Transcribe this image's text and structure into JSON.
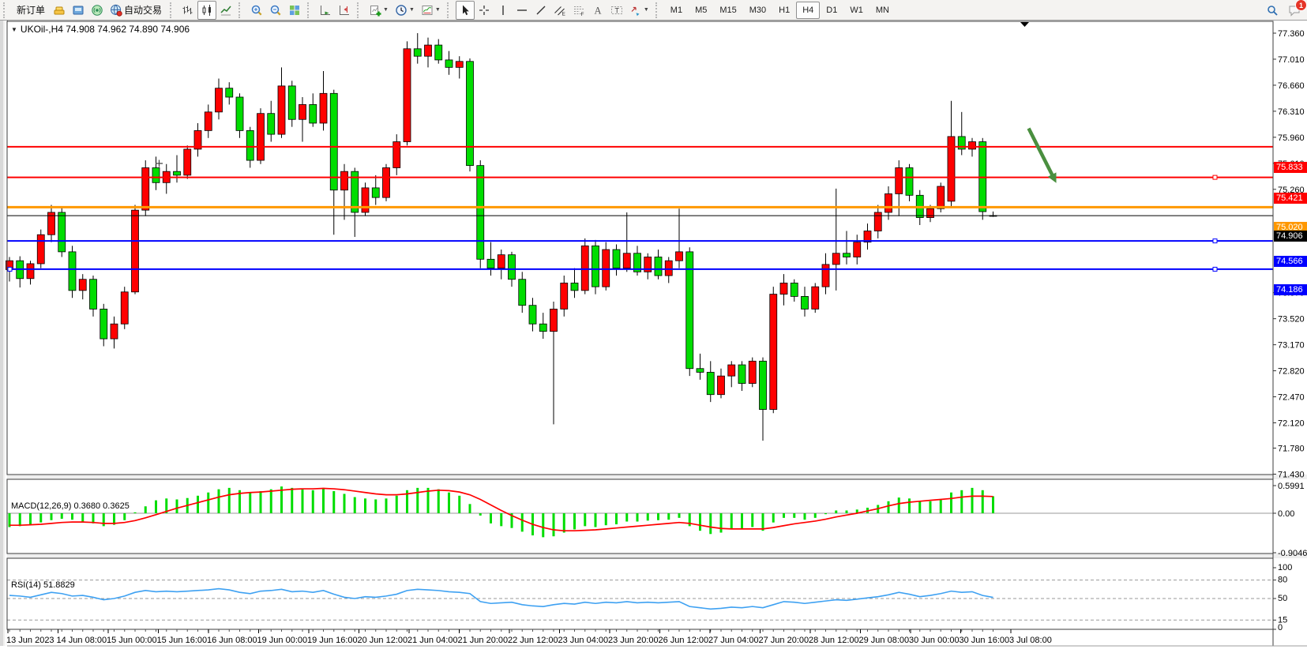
{
  "toolbar": {
    "groups": [
      {
        "name": "trade",
        "buttons": [
          {
            "name": "new-order-button",
            "icon": "new-order",
            "label": "新订单"
          },
          {
            "name": "market-watch-button",
            "icon": "gold"
          },
          {
            "name": "data-window-button",
            "icon": "terminal"
          },
          {
            "name": "navigator-button",
            "icon": "signal"
          },
          {
            "name": "autotrading-button",
            "icon": "globe",
            "label": "自动交易"
          }
        ]
      },
      {
        "name": "chart-type",
        "buttons": [
          {
            "name": "bar-chart-button",
            "icon": "bars"
          },
          {
            "name": "candlestick-button",
            "icon": "candles",
            "active": true
          },
          {
            "name": "line-chart-button",
            "icon": "line"
          }
        ]
      },
      {
        "name": "zoom",
        "buttons": [
          {
            "name": "zoom-in-button",
            "icon": "zoom-in"
          },
          {
            "name": "zoom-out-button",
            "icon": "zoom-out"
          },
          {
            "name": "tile-windows-button",
            "icon": "tile"
          }
        ]
      },
      {
        "name": "scroll",
        "buttons": [
          {
            "name": "auto-scroll-button",
            "icon": "autoscroll"
          },
          {
            "name": "chart-shift-button",
            "icon": "shift"
          }
        ]
      },
      {
        "name": "objects",
        "buttons": [
          {
            "name": "new-chart-button",
            "icon": "new-chart",
            "dropdown": true
          },
          {
            "name": "period-button",
            "icon": "clock",
            "dropdown": true
          },
          {
            "name": "template-button",
            "icon": "template",
            "dropdown": true
          }
        ]
      },
      {
        "name": "drawing",
        "buttons": [
          {
            "name": "cursor-button",
            "icon": "cursor",
            "active": true
          },
          {
            "name": "crosshair-button",
            "icon": "crosshair"
          },
          {
            "name": "vertical-line-button",
            "icon": "vline"
          },
          {
            "name": "horizontal-line-button",
            "icon": "hline"
          },
          {
            "name": "trendline-button",
            "icon": "trend"
          },
          {
            "name": "channel-button",
            "icon": "channel"
          },
          {
            "name": "fibonacci-button",
            "icon": "fibo"
          },
          {
            "name": "text-button",
            "icon": "text"
          },
          {
            "name": "label-button",
            "icon": "label"
          },
          {
            "name": "arrows-button",
            "icon": "arrows",
            "dropdown": true
          }
        ]
      }
    ],
    "timeframes": [
      "M1",
      "M5",
      "M15",
      "M30",
      "H1",
      "H4",
      "D1",
      "W1",
      "MN"
    ],
    "active_timeframe": "H4",
    "notification_badge": "1"
  },
  "chart_header": {
    "title": "UKOil-,H4  74.908 74.962 74.890 74.906"
  },
  "indicators": {
    "macd_label": "MACD(12,26,9) 0.3680 0.3625",
    "rsi_label": "RSI(14) 51.8829"
  },
  "colors": {
    "candle_up": "#ff0000",
    "candle_down": "#00dd00",
    "wick": "#000000",
    "macd_histogram": "#00dd00",
    "macd_signal": "#ff0000",
    "rsi_line": "#3ea1f2",
    "level_red": "#ff0000",
    "level_orange": "#ff9800",
    "level_blue": "#0000ff",
    "current_price": "#000000",
    "annotation_arrow": "#4a8f3f"
  },
  "chart_data": [
    {
      "type": "candlestick",
      "symbol": "UKOil-",
      "timeframe": "H4",
      "current_ohlc": {
        "open": 74.908,
        "high": 74.962,
        "low": 74.89,
        "close": 74.906
      },
      "y_ticks": [
        "77.360",
        "77.010",
        "76.660",
        "76.310",
        "75.960",
        "75.610",
        "75.260",
        "73.870",
        "73.520",
        "73.170",
        "72.820",
        "72.470",
        "72.120",
        "71.780",
        "71.430"
      ],
      "y_range": [
        71.42,
        77.52
      ],
      "grid": false,
      "levels": [
        {
          "price": 75.833,
          "label": "75.833",
          "color": "#ff0000",
          "width": 2
        },
        {
          "price": 75.421,
          "label": "75.421",
          "color": "#ff0000",
          "width": 2,
          "marker": true
        },
        {
          "price": 75.02,
          "label": "75.020",
          "color": "#ff9800",
          "width": 3
        },
        {
          "price": 74.906,
          "label": "74.906",
          "color": "#000000",
          "width": 1,
          "current": true
        },
        {
          "price": 74.566,
          "label": "74.566",
          "color": "#0000ff",
          "width": 2,
          "marker": true
        },
        {
          "price": 74.186,
          "label": "74.186",
          "color": "#0000ff",
          "width": 2,
          "marker": true,
          "left_marker": true
        }
      ],
      "time_labels": [
        "13 Jun 2023",
        "14 Jun 08:00",
        "15 Jun 00:00",
        "15 Jun 16:00",
        "16 Jun 08:00",
        "19 Jun 00:00",
        "19 Jun 16:00",
        "20 Jun 12:00",
        "21 Jun 04:00",
        "21 Jun 20:00",
        "22 Jun 12:00",
        "23 Jun 04:00",
        "23 Jun 20:00",
        "26 Jun 12:00",
        "27 Jun 04:00",
        "27 Jun 20:00",
        "28 Jun 12:00",
        "29 Jun 08:00",
        "30 Jun 00:00",
        "30 Jun 16:00",
        "3 Jul 08:00"
      ],
      "annotation_arrow": {
        "from": [
          97.4,
          76.08
        ],
        "to": [
          99.7,
          75.44
        ]
      },
      "ohlc": [
        [
          74.18,
          74.35,
          74.02,
          74.3
        ],
        [
          74.3,
          74.36,
          73.94,
          74.06
        ],
        [
          74.06,
          74.3,
          73.98,
          74.26
        ],
        [
          74.26,
          74.72,
          74.2,
          74.65
        ],
        [
          74.65,
          75.05,
          74.55,
          74.95
        ],
        [
          74.95,
          75.02,
          74.35,
          74.42
        ],
        [
          74.42,
          74.5,
          73.8,
          73.9
        ],
        [
          73.9,
          74.12,
          73.78,
          74.05
        ],
        [
          74.05,
          74.1,
          73.55,
          73.65
        ],
        [
          73.65,
          73.72,
          73.15,
          73.25
        ],
        [
          73.25,
          73.55,
          73.12,
          73.45
        ],
        [
          73.45,
          73.95,
          73.38,
          73.88
        ],
        [
          73.88,
          75.05,
          73.85,
          74.98
        ],
        [
          74.98,
          75.65,
          74.9,
          75.55
        ],
        [
          75.55,
          75.7,
          75.25,
          75.35
        ],
        [
          75.35,
          75.6,
          75.2,
          75.5
        ],
        [
          75.5,
          75.72,
          75.35,
          75.45
        ],
        [
          75.45,
          75.85,
          75.4,
          75.8
        ],
        [
          75.8,
          76.15,
          75.7,
          76.05
        ],
        [
          76.05,
          76.4,
          75.95,
          76.3
        ],
        [
          76.3,
          76.75,
          76.2,
          76.62
        ],
        [
          76.62,
          76.7,
          76.4,
          76.5
        ],
        [
          76.5,
          76.55,
          75.95,
          76.05
        ],
        [
          76.05,
          76.1,
          75.55,
          75.65
        ],
        [
          75.65,
          76.35,
          75.6,
          76.28
        ],
        [
          76.28,
          76.45,
          75.9,
          76.0
        ],
        [
          76.0,
          76.9,
          75.95,
          76.65
        ],
        [
          76.65,
          76.72,
          76.1,
          76.2
        ],
        [
          76.2,
          76.5,
          75.9,
          76.4
        ],
        [
          76.4,
          76.55,
          76.1,
          76.15
        ],
        [
          76.15,
          76.85,
          76.05,
          76.55
        ],
        [
          76.55,
          76.6,
          74.65,
          75.25
        ],
        [
          75.25,
          75.6,
          74.85,
          75.5
        ],
        [
          75.5,
          75.55,
          74.62,
          74.95
        ],
        [
          74.95,
          75.35,
          74.9,
          75.28
        ],
        [
          75.28,
          75.45,
          75.05,
          75.15
        ],
        [
          75.15,
          75.6,
          75.1,
          75.55
        ],
        [
          75.55,
          76.0,
          75.45,
          75.9
        ],
        [
          75.9,
          77.25,
          75.85,
          77.15
        ],
        [
          77.15,
          77.36,
          76.95,
          77.05
        ],
        [
          77.05,
          77.3,
          76.9,
          77.2
        ],
        [
          77.2,
          77.28,
          76.95,
          77.0
        ],
        [
          77.0,
          77.12,
          76.8,
          76.9
        ],
        [
          76.9,
          77.05,
          76.75,
          76.98
        ],
        [
          76.98,
          77.02,
          75.5,
          75.58
        ],
        [
          75.58,
          75.65,
          74.2,
          74.32
        ],
        [
          74.32,
          74.55,
          74.1,
          74.2
        ],
        [
          74.2,
          74.45,
          74.05,
          74.38
        ],
        [
          74.38,
          74.42,
          73.95,
          74.05
        ],
        [
          74.05,
          74.15,
          73.6,
          73.7
        ],
        [
          73.7,
          73.8,
          73.35,
          73.45
        ],
        [
          73.45,
          73.6,
          73.25,
          73.35
        ],
        [
          73.35,
          73.75,
          72.1,
          73.65
        ],
        [
          73.65,
          74.1,
          73.55,
          74.0
        ],
        [
          74.0,
          74.2,
          73.8,
          73.9
        ],
        [
          73.9,
          74.6,
          73.85,
          74.5
        ],
        [
          74.5,
          74.58,
          73.85,
          73.95
        ],
        [
          73.95,
          74.55,
          73.9,
          74.45
        ],
        [
          74.45,
          74.52,
          74.1,
          74.2
        ],
        [
          74.2,
          74.95,
          74.15,
          74.4
        ],
        [
          74.4,
          74.5,
          74.1,
          74.15
        ],
        [
          74.15,
          74.4,
          74.05,
          74.35
        ],
        [
          74.35,
          74.45,
          74.05,
          74.1
        ],
        [
          74.1,
          74.35,
          74.0,
          74.3
        ],
        [
          74.3,
          75.0,
          74.2,
          74.42
        ],
        [
          74.42,
          74.48,
          72.75,
          72.85
        ],
        [
          72.85,
          73.05,
          72.7,
          72.8
        ],
        [
          72.8,
          72.95,
          72.4,
          72.5
        ],
        [
          72.5,
          72.85,
          72.45,
          72.75
        ],
        [
          72.75,
          72.95,
          72.6,
          72.9
        ],
        [
          72.9,
          72.95,
          72.55,
          72.65
        ],
        [
          72.65,
          73.0,
          72.6,
          72.95
        ],
        [
          72.95,
          73.0,
          71.88,
          72.3
        ],
        [
          72.3,
          73.95,
          72.25,
          73.85
        ],
        [
          73.85,
          74.12,
          73.7,
          74.0
        ],
        [
          74.0,
          74.05,
          73.75,
          73.82
        ],
        [
          73.82,
          73.95,
          73.55,
          73.65
        ],
        [
          73.65,
          74.0,
          73.6,
          73.95
        ],
        [
          73.95,
          74.4,
          73.85,
          74.25
        ],
        [
          74.25,
          75.27,
          73.9,
          74.4
        ],
        [
          74.4,
          74.7,
          74.25,
          74.35
        ],
        [
          74.35,
          74.65,
          74.25,
          74.55
        ],
        [
          74.55,
          74.8,
          74.45,
          74.7
        ],
        [
          74.7,
          75.05,
          74.6,
          74.95
        ],
        [
          74.95,
          75.3,
          74.85,
          75.2
        ],
        [
          75.2,
          75.65,
          74.9,
          75.55
        ],
        [
          75.55,
          75.6,
          75.1,
          75.18
        ],
        [
          75.18,
          75.25,
          74.78,
          74.88
        ],
        [
          74.88,
          75.05,
          74.82,
          75.0
        ],
        [
          75.0,
          75.35,
          74.95,
          75.3
        ],
        [
          75.1,
          76.45,
          75.02,
          75.97
        ],
        [
          75.97,
          76.3,
          75.72,
          75.8
        ],
        [
          75.8,
          75.95,
          75.7,
          75.9
        ],
        [
          75.9,
          75.95,
          74.85,
          74.96
        ],
        [
          74.908,
          74.962,
          74.89,
          74.906
        ]
      ]
    },
    {
      "type": "bar",
      "name": "MACD",
      "params": [
        12,
        26,
        9
      ],
      "current_values": {
        "macd": 0.368,
        "signal": 0.3625
      },
      "y_ticks": [
        {
          "v": 0.5991,
          "text": "0.5991"
        },
        {
          "v": 0,
          "text": "0.00"
        },
        {
          "v": -0.9046,
          "text": "-0.9046"
        }
      ],
      "y_range": [
        -0.9046,
        0.5991
      ],
      "histogram": [
        -0.3,
        -0.28,
        -0.25,
        -0.2,
        -0.15,
        -0.12,
        -0.14,
        -0.18,
        -0.22,
        -0.28,
        -0.25,
        -0.15,
        0.02,
        0.15,
        0.28,
        0.32,
        0.3,
        0.33,
        0.38,
        0.45,
        0.52,
        0.55,
        0.5,
        0.44,
        0.48,
        0.52,
        0.58,
        0.55,
        0.52,
        0.5,
        0.55,
        0.48,
        0.42,
        0.35,
        0.32,
        0.3,
        0.32,
        0.38,
        0.5,
        0.55,
        0.55,
        0.52,
        0.45,
        0.38,
        0.2,
        -0.05,
        -0.22,
        -0.28,
        -0.32,
        -0.4,
        -0.48,
        -0.52,
        -0.5,
        -0.42,
        -0.35,
        -0.28,
        -0.3,
        -0.26,
        -0.24,
        -0.18,
        -0.18,
        -0.16,
        -0.15,
        -0.14,
        -0.1,
        -0.28,
        -0.38,
        -0.45,
        -0.42,
        -0.35,
        -0.35,
        -0.3,
        -0.38,
        -0.2,
        -0.1,
        -0.1,
        -0.14,
        -0.1,
        -0.02,
        0.06,
        0.06,
        0.08,
        0.12,
        0.18,
        0.26,
        0.34,
        0.32,
        0.26,
        0.26,
        0.3,
        0.45,
        0.5,
        0.55,
        0.5,
        0.368
      ],
      "signal": [
        -0.26,
        -0.26,
        -0.25,
        -0.24,
        -0.22,
        -0.2,
        -0.19,
        -0.19,
        -0.2,
        -0.22,
        -0.22,
        -0.2,
        -0.16,
        -0.1,
        -0.03,
        0.04,
        0.11,
        0.17,
        0.23,
        0.29,
        0.35,
        0.4,
        0.43,
        0.45,
        0.46,
        0.48,
        0.5,
        0.52,
        0.53,
        0.53,
        0.54,
        0.53,
        0.51,
        0.48,
        0.45,
        0.42,
        0.4,
        0.4,
        0.42,
        0.45,
        0.48,
        0.5,
        0.49,
        0.46,
        0.4,
        0.3,
        0.18,
        0.06,
        -0.05,
        -0.15,
        -0.24,
        -0.31,
        -0.36,
        -0.38,
        -0.38,
        -0.37,
        -0.36,
        -0.34,
        -0.32,
        -0.3,
        -0.28,
        -0.26,
        -0.24,
        -0.22,
        -0.2,
        -0.22,
        -0.26,
        -0.3,
        -0.33,
        -0.34,
        -0.34,
        -0.34,
        -0.34,
        -0.31,
        -0.27,
        -0.23,
        -0.2,
        -0.17,
        -0.13,
        -0.08,
        -0.04,
        0.0,
        0.05,
        0.1,
        0.16,
        0.21,
        0.24,
        0.26,
        0.28,
        0.3,
        0.32,
        0.35,
        0.37,
        0.37,
        0.3625
      ]
    },
    {
      "type": "line",
      "name": "RSI",
      "period": 14,
      "current_value": 51.8829,
      "y_ticks": [
        {
          "v": 100,
          "text": "100"
        },
        {
          "v": 80,
          "text": "80"
        },
        {
          "v": 50,
          "text": "50"
        },
        {
          "v": 15,
          "text": "15"
        },
        {
          "v": 0,
          "text": "0"
        }
      ],
      "levels": [
        80,
        50,
        15
      ],
      "y_range": [
        0,
        100
      ],
      "values": [
        55,
        54,
        52,
        56,
        60,
        58,
        54,
        55,
        52,
        48,
        50,
        54,
        60,
        63,
        61,
        62,
        61,
        62,
        63,
        64,
        66,
        64,
        60,
        58,
        62,
        63,
        65,
        61,
        62,
        60,
        63,
        57,
        52,
        50,
        53,
        52,
        54,
        57,
        63,
        65,
        64,
        63,
        61,
        60,
        58,
        45,
        42,
        43,
        44,
        40,
        38,
        37,
        40,
        42,
        41,
        44,
        42,
        44,
        43,
        45,
        43,
        44,
        43,
        44,
        45,
        37,
        35,
        33,
        34,
        36,
        35,
        37,
        35,
        40,
        45,
        44,
        42,
        44,
        46,
        48,
        47,
        49,
        51,
        53,
        56,
        60,
        57,
        53,
        55,
        58,
        62,
        60,
        61,
        55,
        51.88
      ]
    }
  ]
}
